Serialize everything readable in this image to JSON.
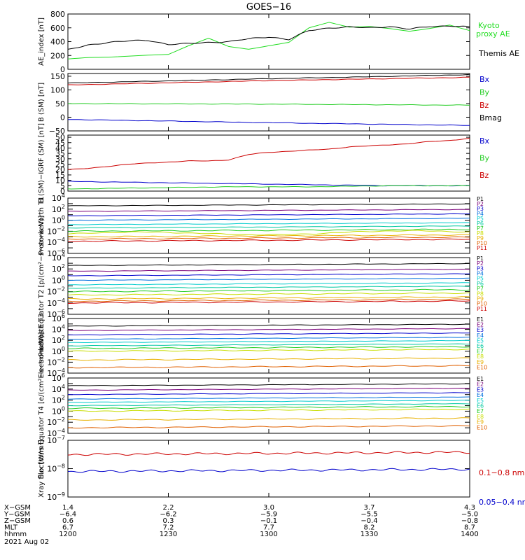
{
  "title": "GOES−16",
  "colors": {
    "black": "#000000",
    "red": "#cc0000",
    "green": "#22dd22",
    "blue": "#0000cc",
    "p_series": [
      "#000000",
      "#7a007a",
      "#0000cc",
      "#0070dd",
      "#00cccc",
      "#00c8a0",
      "#22cc22",
      "#c8dd00",
      "#e8b000",
      "#e06000",
      "#cc0000"
    ]
  },
  "chart_data": [
    {
      "type": "line",
      "id": "ae",
      "ylabel": "AE_index [nT]",
      "ylim": [
        0,
        800
      ],
      "yticks": [
        "0",
        "200",
        "400",
        "600",
        "800"
      ],
      "series": [
        {
          "name": "Kyoto proxy AE",
          "label_lines": [
            "Kyoto",
            "proxy AE"
          ],
          "color": "#22dd22",
          "x": [
            0,
            0.05,
            0.1,
            0.15,
            0.2,
            0.25,
            0.3,
            0.35,
            0.4,
            0.45,
            0.5,
            0.55,
            0.6,
            0.65,
            0.7,
            0.75,
            0.8,
            0.85,
            0.9,
            0.95,
            1.0
          ],
          "y": [
            150,
            170,
            175,
            190,
            205,
            215,
            340,
            450,
            330,
            290,
            340,
            390,
            600,
            680,
            610,
            620,
            590,
            550,
            590,
            640,
            560
          ]
        },
        {
          "name": "Themis AE",
          "label_lines": [
            "Themis AE"
          ],
          "color": "#000000",
          "x": [
            0,
            0.05,
            0.1,
            0.15,
            0.2,
            0.25,
            0.3,
            0.35,
            0.4,
            0.45,
            0.5,
            0.55,
            0.6,
            0.65,
            0.7,
            0.75,
            0.8,
            0.85,
            0.9,
            0.95,
            1.0
          ],
          "y": [
            280,
            350,
            390,
            410,
            420,
            360,
            370,
            390,
            400,
            440,
            470,
            430,
            560,
            600,
            610,
            600,
            620,
            580,
            620,
            630,
            610
          ]
        }
      ]
    },
    {
      "type": "line",
      "id": "bsm",
      "ylabel": "B (SM) [nT]",
      "ylim": [
        -50,
        160
      ],
      "yticks": [
        "−50",
        "0",
        "50",
        "100",
        "150"
      ],
      "legend": [
        "Bx",
        "By",
        "Bz",
        "Bmag"
      ],
      "legend_colors": [
        "#0000cc",
        "#22cc22",
        "#cc0000",
        "#000000"
      ],
      "series": [
        {
          "name": "Bmag",
          "color": "#000000",
          "x": [
            0,
            0.25,
            0.5,
            0.75,
            1.0
          ],
          "y": [
            125,
            133,
            141,
            148,
            156
          ]
        },
        {
          "name": "Bz",
          "color": "#cc0000",
          "x": [
            0,
            0.25,
            0.5,
            0.75,
            1.0
          ],
          "y": [
            118,
            126,
            134,
            140,
            146
          ]
        },
        {
          "name": "By",
          "color": "#22cc22",
          "x": [
            0,
            0.25,
            0.5,
            0.75,
            1.0
          ],
          "y": [
            50,
            49,
            48,
            46,
            44
          ]
        },
        {
          "name": "Bx",
          "color": "#0000cc",
          "x": [
            0,
            0.25,
            0.5,
            0.75,
            1.0
          ],
          "y": [
            -8,
            -14,
            -20,
            -25,
            -30
          ]
        }
      ]
    },
    {
      "type": "line",
      "id": "bigrf",
      "ylabel": "B (SM)−IGRF (SM) [nT]",
      "ylim": [
        0,
        52
      ],
      "yticks": [
        "0",
        "5",
        "10",
        "15",
        "20",
        "25",
        "30",
        "35",
        "40",
        "45",
        "50"
      ],
      "legend": [
        "Bx",
        "By",
        "Bz"
      ],
      "legend_colors": [
        "#0000cc",
        "#22cc22",
        "#cc0000"
      ],
      "series": [
        {
          "name": "Bz",
          "color": "#cc0000",
          "x": [
            0,
            0.05,
            0.1,
            0.15,
            0.2,
            0.25,
            0.3,
            0.35,
            0.4,
            0.45,
            0.5,
            0.55,
            0.6,
            0.65,
            0.7,
            0.75,
            0.8,
            0.85,
            0.9,
            0.95,
            1.0
          ],
          "y": [
            20,
            21,
            23,
            25,
            26,
            27,
            28,
            28,
            29,
            34,
            36,
            37,
            38,
            39,
            41,
            42,
            43,
            44,
            46,
            47,
            49
          ]
        },
        {
          "name": "Bx",
          "color": "#0000cc",
          "x": [
            0,
            0.2,
            0.4,
            0.6,
            0.8,
            1.0
          ],
          "y": [
            9,
            8,
            7,
            6,
            5,
            5
          ]
        },
        {
          "name": "By",
          "color": "#22cc22",
          "x": [
            0,
            0.2,
            0.4,
            0.6,
            0.8,
            1.0
          ],
          "y": [
            2,
            3,
            4,
            4,
            5,
            5
          ]
        }
      ]
    },
    {
      "type": "line",
      "id": "pnorth",
      "log": true,
      "ylabel": "Protons North T1",
      "ydec": [
        -6,
        4
      ],
      "ytick_exp": [
        -6,
        -4,
        -2,
        0,
        2,
        4
      ],
      "channels": [
        "P1",
        "P2",
        "P3",
        "P4",
        "P5",
        "P6",
        "P7",
        "P8",
        "P9",
        "P10",
        "P11"
      ],
      "levels": [
        2.6,
        1.6,
        0.8,
        0.0,
        -0.8,
        -1.4,
        -2.0,
        -2.5,
        -3.0,
        -3.4,
        -3.8
      ]
    },
    {
      "type": "line",
      "id": "pequator",
      "log": true,
      "ylabel": "Protons Equator T2 [p/(cm²−s−sr−keV)]",
      "ydec": [
        -6,
        4
      ],
      "ytick_exp": [
        -6,
        -4,
        -2,
        0,
        2,
        4
      ],
      "channels": [
        "P1",
        "P2",
        "P3",
        "P4",
        "P5",
        "P6",
        "P7",
        "P8",
        "P9",
        "P10",
        "P11"
      ],
      "levels": [
        2.6,
        1.6,
        0.8,
        0.0,
        -0.8,
        -1.4,
        -2.0,
        -2.6,
        -3.3,
        -3.7,
        -4.0
      ]
    },
    {
      "type": "line",
      "id": "enorth",
      "log": true,
      "ylabel": "Electrons North T3",
      "ydec": [
        -4,
        6
      ],
      "ytick_exp": [
        -4,
        -2,
        0,
        2,
        4,
        6
      ],
      "channels": [
        "E1",
        "E2",
        "E3",
        "E4",
        "E5",
        "E6",
        "E7",
        "E8",
        "E9",
        "E10"
      ],
      "levels": [
        4.6,
        3.8,
        3.0,
        2.2,
        1.6,
        1.0,
        0.5,
        0.0,
        -1.6,
        -3.0
      ]
    },
    {
      "type": "line",
      "id": "eequator",
      "log": true,
      "ylabel": "Electrons Equator T4 [e/(cm²−s−sr−keV)]",
      "ydec": [
        -4,
        6
      ],
      "ytick_exp": [
        -4,
        -2,
        0,
        2,
        4,
        6
      ],
      "channels": [
        "E1",
        "E2",
        "E3",
        "E4",
        "E5",
        "E6",
        "E7",
        "E8",
        "E9",
        "E10"
      ],
      "levels": [
        4.6,
        3.8,
        3.0,
        2.2,
        1.6,
        1.0,
        0.5,
        0.0,
        -1.6,
        -3.0
      ]
    },
    {
      "type": "line",
      "id": "xray",
      "log": true,
      "ylabel": "Xray flux [W/m²]",
      "ydec": [
        -9,
        -7
      ],
      "ytick_exp": [
        -9,
        -8,
        -7
      ],
      "series": [
        {
          "name": "0.1−0.8 nm",
          "color": "#cc0000",
          "level": -7.5
        },
        {
          "name": "0.05−0.4 nm",
          "color": "#0000cc",
          "level": -8.1
        }
      ]
    }
  ],
  "axis_table": {
    "row_labels": [
      "X−GSM",
      "Y−GSM",
      "Z−GSM",
      "MLT",
      "hhmm"
    ],
    "columns": [
      [
        "1.4",
        "−6.4",
        "0.6",
        "6.7",
        "1200"
      ],
      [
        "2.2",
        "−6.2",
        "0.3",
        "7.2",
        "1230"
      ],
      [
        "3.0",
        "−5.9",
        "−0.1",
        "7.7",
        "1300"
      ],
      [
        "3.7",
        "−5.5",
        "−0.4",
        "8.2",
        "1330"
      ],
      [
        "4.3",
        "−5.0",
        "−0.8",
        "8.7",
        "1400"
      ]
    ],
    "date": "2021 Aug 02"
  }
}
